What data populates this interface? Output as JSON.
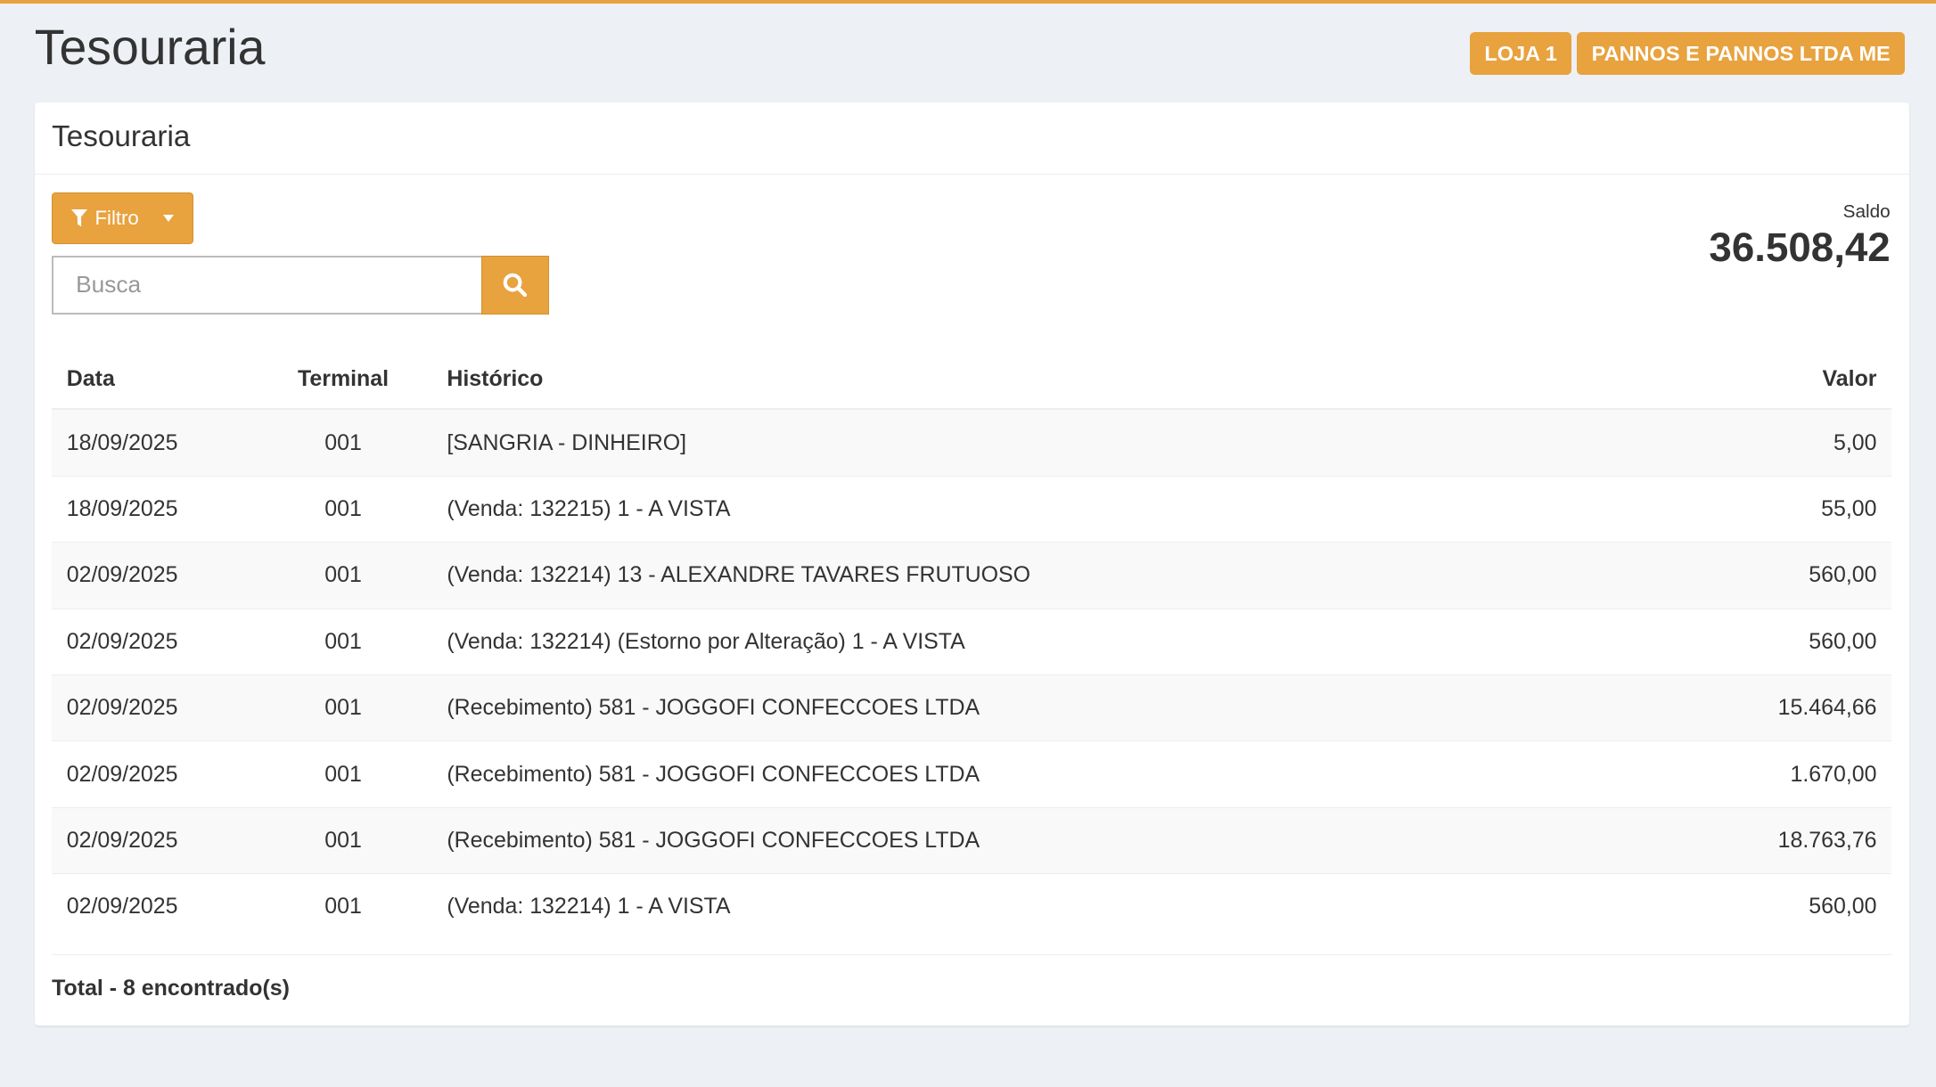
{
  "page": {
    "title": "Tesouraria"
  },
  "badges": {
    "store": "LOJA 1",
    "company": "PANNOS E PANNOS LTDA ME"
  },
  "card": {
    "title": "Tesouraria"
  },
  "filter": {
    "label": "Filtro",
    "icon": "filter-icon"
  },
  "search": {
    "placeholder": "Busca",
    "value": "",
    "icon": "search-icon"
  },
  "balance": {
    "label": "Saldo",
    "value": "36.508,42"
  },
  "table": {
    "headers": {
      "date": "Data",
      "terminal": "Terminal",
      "history": "Histórico",
      "value": "Valor"
    },
    "rows": [
      {
        "date": "18/09/2025",
        "terminal": "001",
        "history": "[SANGRIA - DINHEIRO]",
        "value": "5,00"
      },
      {
        "date": "18/09/2025",
        "terminal": "001",
        "history": "(Venda: 132215) 1 - A VISTA",
        "value": "55,00"
      },
      {
        "date": "02/09/2025",
        "terminal": "001",
        "history": "(Venda: 132214) 13 - ALEXANDRE TAVARES FRUTUOSO",
        "value": "560,00"
      },
      {
        "date": "02/09/2025",
        "terminal": "001",
        "history": "(Venda: 132214) (Estorno por Alteração) 1 - A VISTA",
        "value": "560,00"
      },
      {
        "date": "02/09/2025",
        "terminal": "001",
        "history": "(Recebimento) 581 - JOGGOFI CONFECCOES LTDA",
        "value": "15.464,66"
      },
      {
        "date": "02/09/2025",
        "terminal": "001",
        "history": "(Recebimento) 581 - JOGGOFI CONFECCOES LTDA",
        "value": "1.670,00"
      },
      {
        "date": "02/09/2025",
        "terminal": "001",
        "history": "(Recebimento) 581 - JOGGOFI CONFECCOES LTDA",
        "value": "18.763,76"
      },
      {
        "date": "02/09/2025",
        "terminal": "001",
        "history": "(Venda: 132214) 1 - A VISTA",
        "value": "560,00"
      }
    ]
  },
  "footer": {
    "total": "Total - 8 encontrado(s)"
  },
  "colors": {
    "accent": "#e8a23e",
    "background": "#edf0f5"
  }
}
